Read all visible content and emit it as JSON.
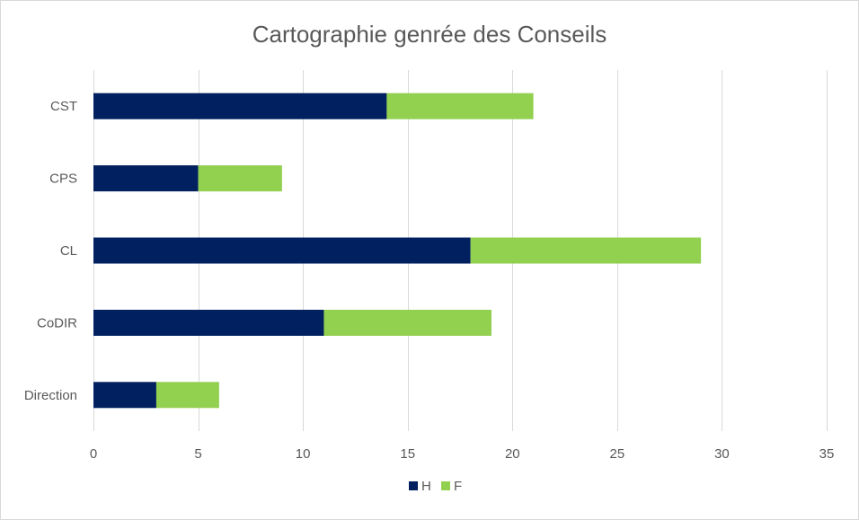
{
  "chart_data": {
    "type": "bar",
    "orientation": "horizontal",
    "stacked": true,
    "title": "Cartographie genrée des Conseils",
    "categories": [
      "CST",
      "CPS",
      "CL",
      "CoDIR",
      "Direction"
    ],
    "series": [
      {
        "name": "H",
        "color": "#002060",
        "values": [
          14,
          5,
          18,
          11,
          3
        ]
      },
      {
        "name": "F",
        "color": "#92D050",
        "values": [
          7,
          4,
          11,
          8,
          3
        ]
      }
    ],
    "xlim": [
      0,
      35
    ],
    "xticks": [
      0,
      5,
      10,
      15,
      20,
      25,
      30,
      35
    ],
    "grid": "vertical",
    "legend_position": "bottom"
  }
}
